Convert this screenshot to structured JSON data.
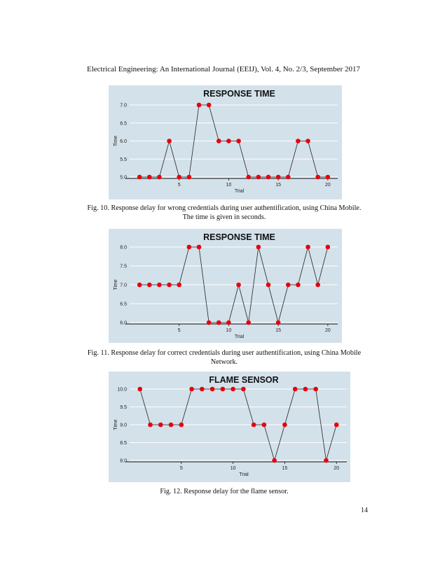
{
  "header": "Electrical Engineering: An International Journal (EEIJ), Vol. 4, No. 2/3, September 2017",
  "page_number": "14",
  "captions": [
    "Fig. 10. Response delay for wrong credentials during user authentification, using China Mobile. The time is given in seconds.",
    "Fig. 11. Response delay for correct credentials during user authentification, using China Mobile Network.",
    "Fig. 12. Response delay for the flame sensor."
  ],
  "colors": {
    "panel": "#d3e1ea",
    "grid": "#ffffff",
    "line": "#222222",
    "marker": "#e8000b"
  },
  "chart_data": [
    {
      "type": "line",
      "title": "RESPONSE TIME",
      "xlabel": "Trial",
      "ylabel": "Time",
      "x": [
        1,
        2,
        3,
        4,
        5,
        6,
        7,
        8,
        9,
        10,
        11,
        12,
        13,
        14,
        15,
        16,
        17,
        18,
        19,
        20
      ],
      "values": [
        5.0,
        5.0,
        5.0,
        6.0,
        5.0,
        5.0,
        7.0,
        7.0,
        6.0,
        6.0,
        6.0,
        5.0,
        5.0,
        5.0,
        5.0,
        5.0,
        6.0,
        6.0,
        5.0,
        5.0
      ],
      "xticks": [
        5,
        10,
        15,
        20
      ],
      "yticks": [
        "5.0",
        "5.5",
        "6.0",
        "6.5",
        "7.0"
      ],
      "xlim": [
        0,
        21
      ],
      "ylim": [
        5.0,
        7.0
      ]
    },
    {
      "type": "line",
      "title": "RESPONSE TIME",
      "xlabel": "Trial",
      "ylabel": "Time",
      "x": [
        1,
        2,
        3,
        4,
        5,
        6,
        7,
        8,
        9,
        10,
        11,
        12,
        13,
        14,
        15,
        16,
        17,
        18,
        19,
        20
      ],
      "values": [
        7.0,
        7.0,
        7.0,
        7.0,
        7.0,
        8.0,
        8.0,
        6.0,
        6.0,
        6.0,
        7.0,
        6.0,
        8.0,
        7.0,
        6.0,
        7.0,
        7.0,
        8.0,
        7.0,
        8.0
      ],
      "xticks": [
        5,
        10,
        15,
        20
      ],
      "yticks": [
        "6.0",
        "6.5",
        "7.0",
        "7.5",
        "8.0"
      ],
      "xlim": [
        0,
        21
      ],
      "ylim": [
        6.0,
        8.0
      ]
    },
    {
      "type": "line",
      "title": "FLAME SENSOR",
      "xlabel": "Trial",
      "ylabel": "Time",
      "x": [
        1,
        2,
        3,
        4,
        5,
        6,
        7,
        8,
        9,
        10,
        11,
        12,
        13,
        14,
        15,
        16,
        17,
        18,
        19,
        20
      ],
      "values": [
        10.0,
        9.0,
        9.0,
        9.0,
        9.0,
        10.0,
        10.0,
        10.0,
        10.0,
        10.0,
        10.0,
        9.0,
        9.0,
        8.0,
        9.0,
        10.0,
        10.0,
        10.0,
        8.0,
        9.0
      ],
      "xticks": [
        5,
        10,
        15,
        20
      ],
      "yticks": [
        "8.0",
        "8.5",
        "9.0",
        "9.5",
        "10.0"
      ],
      "xlim": [
        0,
        21
      ],
      "ylim": [
        8.0,
        10.0
      ]
    }
  ]
}
